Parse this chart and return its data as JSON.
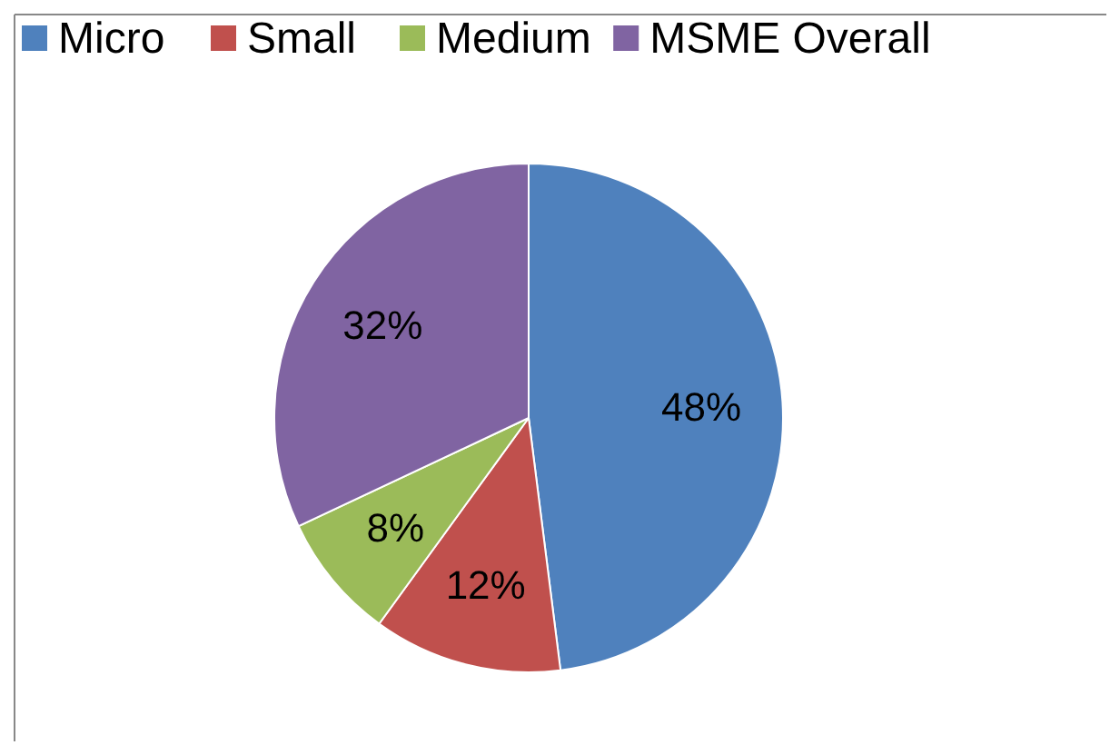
{
  "chart_data": {
    "type": "pie",
    "categories": [
      "Micro",
      "Small",
      "Medium",
      "MSME Overall"
    ],
    "values": [
      48,
      12,
      8,
      32
    ],
    "colors": [
      "#4f81bd",
      "#c0504d",
      "#9bbb59",
      "#8064a2"
    ],
    "value_labels": [
      "48%",
      "12%",
      "8%",
      "32%"
    ],
    "legend": "top"
  }
}
